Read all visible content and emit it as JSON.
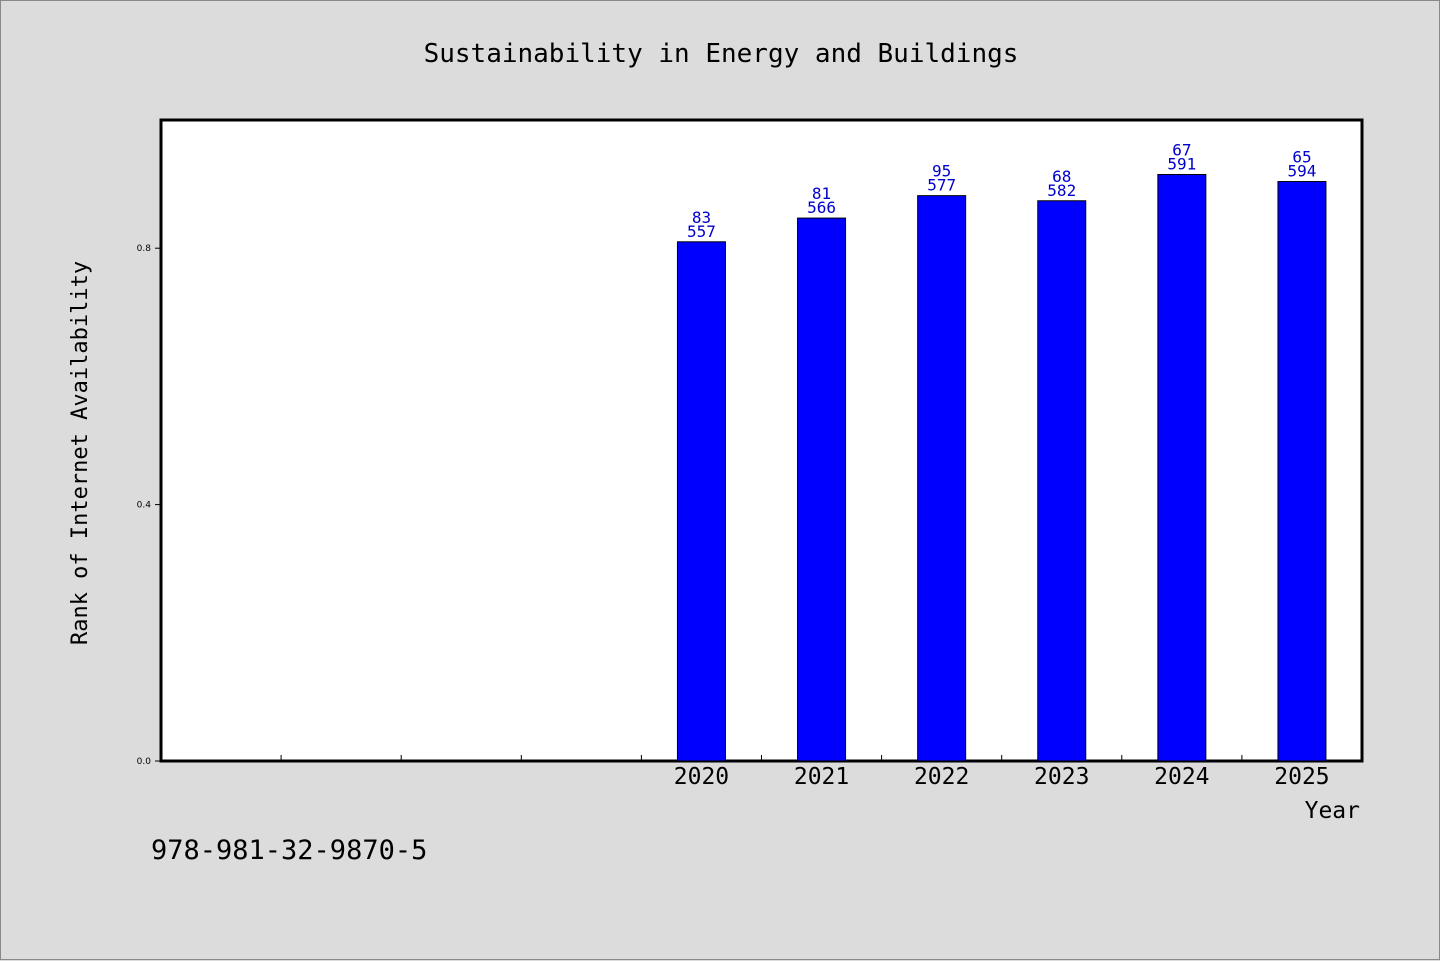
{
  "chart_data": {
    "type": "bar",
    "title": "Sustainability in Energy and Buildings",
    "xlabel": "Year",
    "ylabel": "Rank of Internet Availability",
    "slots": 10,
    "categories": [
      "2020",
      "2021",
      "2022",
      "2023",
      "2024",
      "2025"
    ],
    "category_slots": [
      5,
      6,
      7,
      8,
      9,
      10
    ],
    "values": [
      0.81,
      0.847,
      0.882,
      0.874,
      0.915,
      0.904
    ],
    "labels_top": [
      "83",
      "81",
      "95",
      "68",
      "67",
      "65"
    ],
    "labels_bottom": [
      "557",
      "566",
      "577",
      "582",
      "591",
      "594"
    ],
    "yticks": [
      0.0,
      0.4,
      0.8
    ],
    "ytick_labels": [
      "0.0",
      "0.4",
      "0.8"
    ],
    "ylim": [
      0,
      1.0
    ],
    "grid": false,
    "legend": "none",
    "bar_color": "#0000ff",
    "label_color": "#0000cc"
  },
  "footer": {
    "isbn": "978-981-32-9870-5"
  }
}
